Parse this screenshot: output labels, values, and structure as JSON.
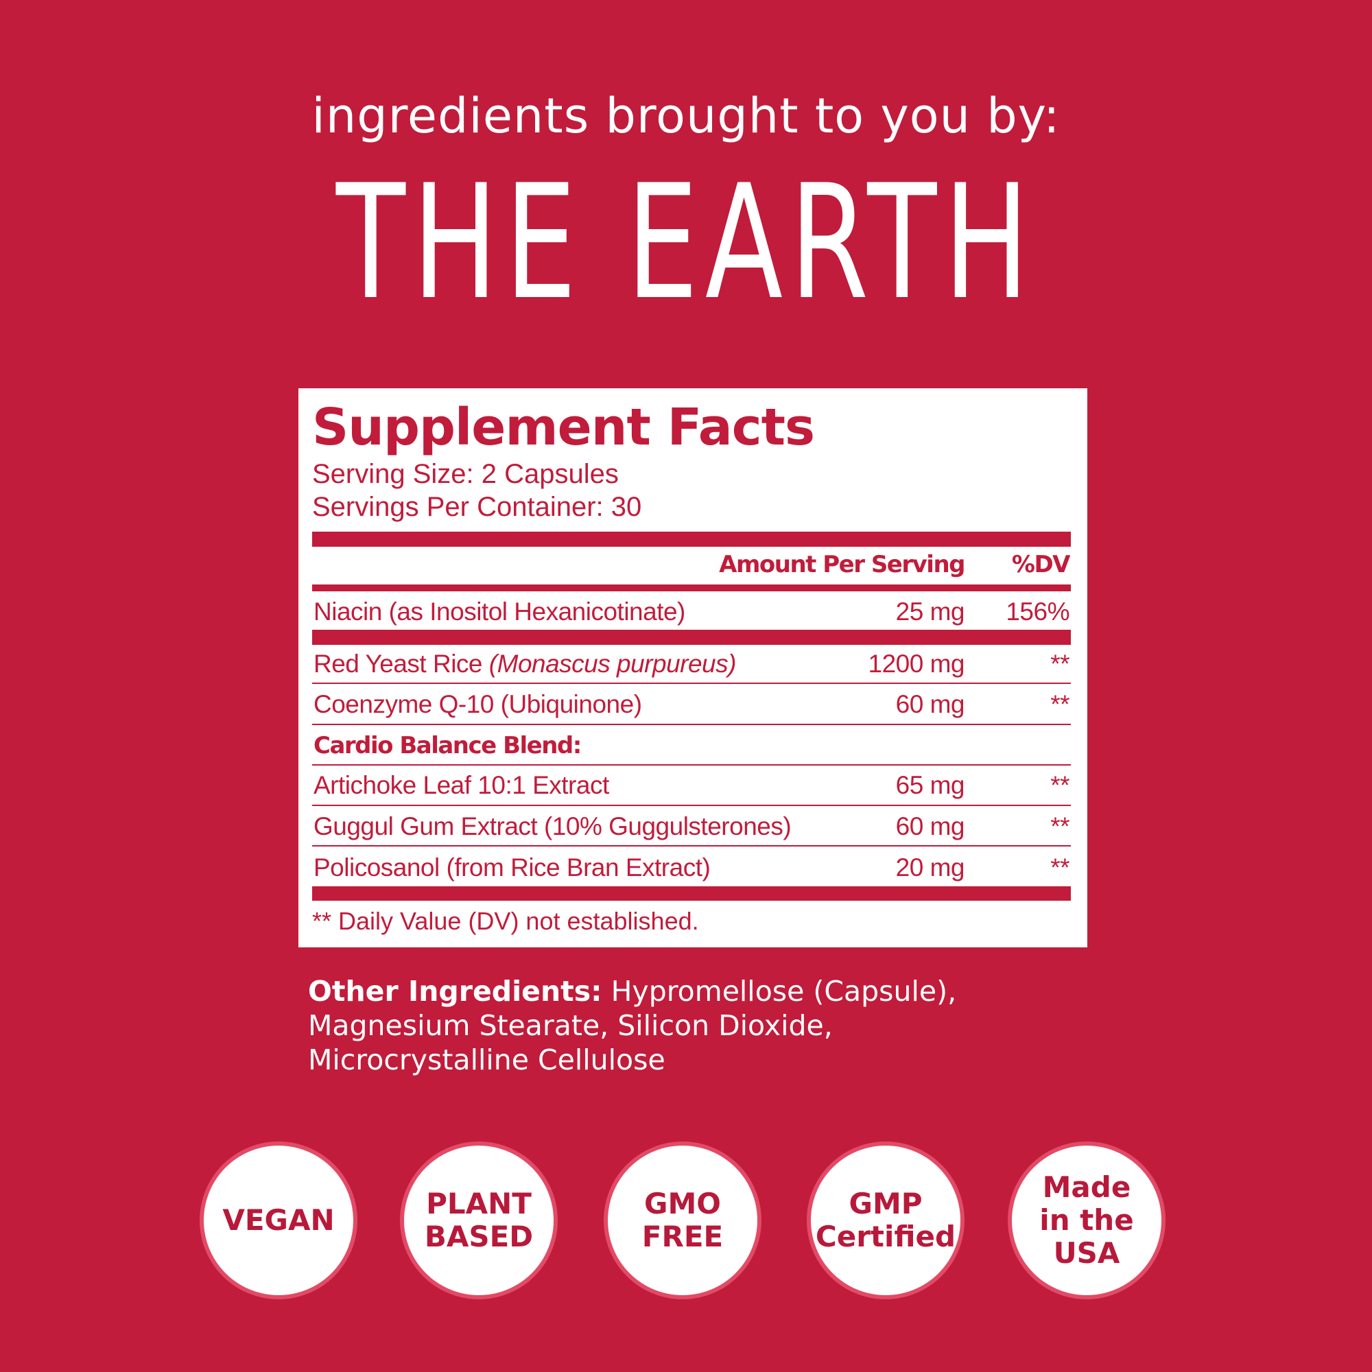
{
  "header": {
    "tagline": "ingredients brought to you by:",
    "brand": "THE EARTH"
  },
  "facts": {
    "title": "Supplement  Facts",
    "serving_size": "Serving Size: 2 Capsules",
    "servings_per_container": "Servings Per Container: 30",
    "col_amount": "Amount Per Serving",
    "col_dv": "%DV",
    "rows": [
      {
        "name": "Niacin (as Inositol Hexanicotinate)",
        "amount": "25 mg",
        "dv": "156%"
      },
      {
        "name": "Red Yeast Rice ",
        "name_italic": "(Monascus purpureus)",
        "amount": "1200 mg",
        "dv": "**"
      },
      {
        "name": "Coenzyme Q-10 (Ubiquinone)",
        "amount": "60 mg",
        "dv": "**"
      },
      {
        "name": "Cardio Balance Blend:"
      },
      {
        "name": "Artichoke Leaf 10:1 Extract",
        "amount": "65 mg",
        "dv": "**"
      },
      {
        "name": "Guggul Gum Extract (10% Guggulsterones)",
        "amount": "60 mg",
        "dv": "**"
      },
      {
        "name": "Policosanol (from Rice Bran Extract)",
        "amount": "20 mg",
        "dv": "**"
      }
    ],
    "footnote": "** Daily Value (DV) not established."
  },
  "other_ingredients": {
    "label": "Other Ingredients:",
    "line1": " Hypromellose (Capsule),",
    "line2": "Magnesium Stearate, Silicon Dioxide,",
    "line3": "Microcrystalline Cellulose"
  },
  "badges": [
    "VEGAN",
    "PLANT\nBASED",
    "GMO\nFREE",
    "GMP\nCertified",
    "Made\nin the\nUSA"
  ],
  "colors": {
    "background": "#c11c3b",
    "panel": "#ffffff",
    "badge_border": "#e24a66"
  }
}
